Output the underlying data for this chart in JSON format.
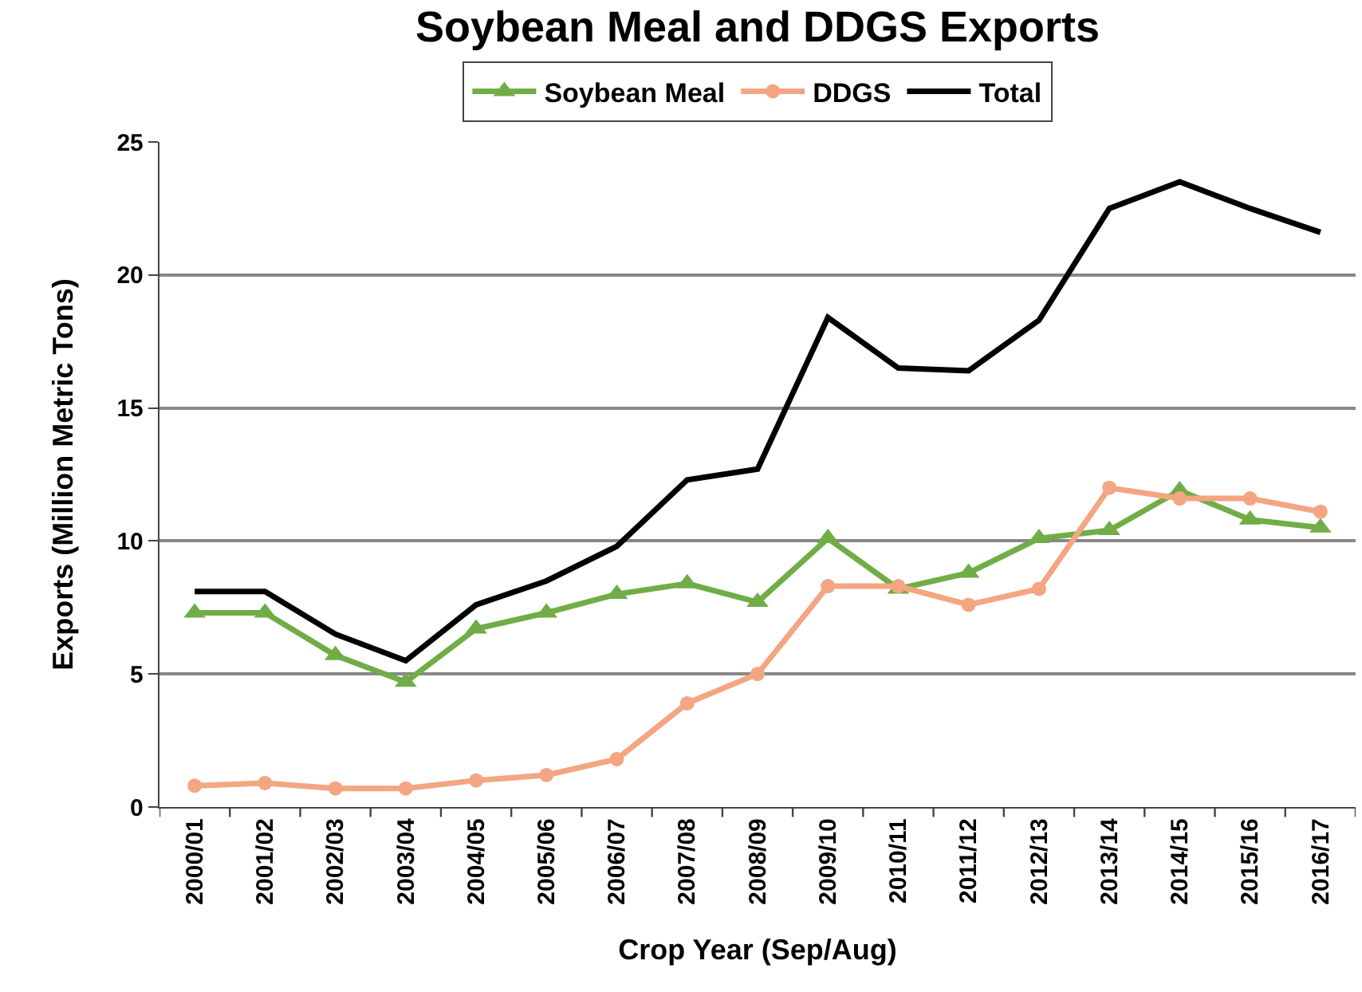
{
  "chart_data": {
    "type": "line",
    "title": "Soybean Meal and DDGS Exports",
    "xlabel": "Crop Year (Sep/Aug)",
    "ylabel": "Exports (Million Metric Tons)",
    "categories": [
      "2000/01",
      "2001/02",
      "2002/03",
      "2003/04",
      "2004/05",
      "2005/06",
      "2006/07",
      "2007/08",
      "2008/09",
      "2009/10",
      "2010/11",
      "2011/12",
      "2012/13",
      "2013/14",
      "2014/15",
      "2015/16",
      "2016/17"
    ],
    "series": [
      {
        "name": "Soybean Meal",
        "color": "#70ad47",
        "marker": "triangle",
        "values": [
          7.3,
          7.3,
          5.7,
          4.7,
          6.7,
          7.3,
          8.0,
          8.4,
          7.7,
          10.1,
          8.2,
          8.8,
          10.1,
          10.4,
          11.9,
          10.8,
          10.5
        ]
      },
      {
        "name": "DDGS",
        "color": "#f4a582",
        "marker": "circle",
        "values": [
          0.8,
          0.9,
          0.7,
          0.7,
          1.0,
          1.2,
          1.8,
          3.9,
          5.0,
          8.3,
          8.3,
          7.6,
          8.2,
          12.0,
          11.6,
          11.6,
          11.1
        ]
      },
      {
        "name": "Total",
        "color": "#000000",
        "marker": "none",
        "values": [
          8.1,
          8.1,
          6.5,
          5.5,
          7.6,
          8.5,
          9.8,
          12.3,
          12.7,
          18.4,
          16.5,
          16.4,
          18.3,
          22.5,
          23.5,
          22.5,
          21.6
        ]
      }
    ],
    "ylim": [
      0,
      25
    ],
    "yticks": [
      0,
      5,
      10,
      15,
      20,
      25
    ],
    "grid": "y",
    "legend": "top",
    "line_style": "solid"
  }
}
